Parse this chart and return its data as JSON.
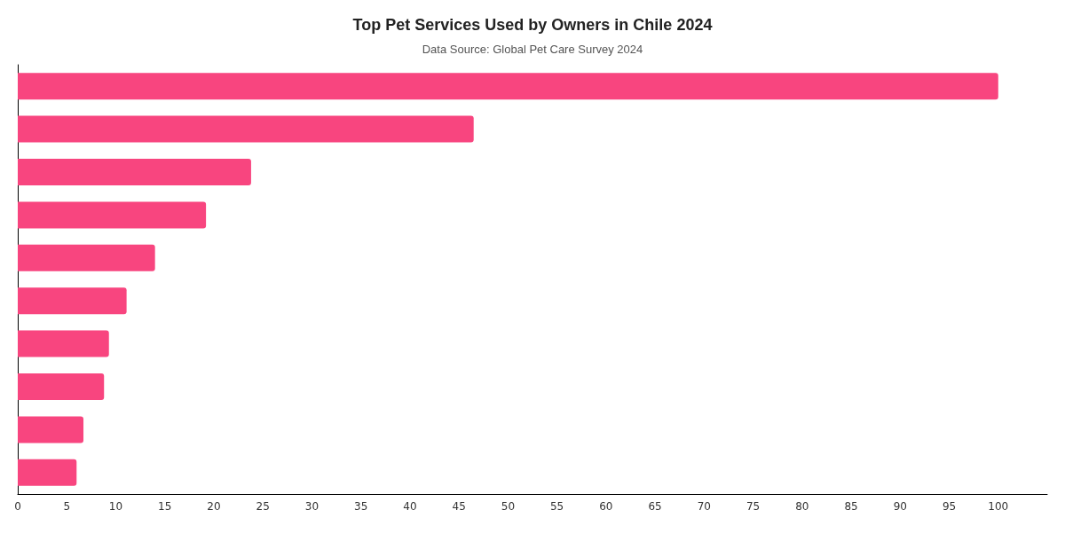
{
  "chart_data": {
    "type": "bar",
    "orientation": "horizontal",
    "title": "Top Pet Services Used by Owners in Chile 2024",
    "subtitle": "Data Source: Global Pet Care Survey 2024",
    "categories": [
      null,
      null,
      null,
      null,
      null,
      null,
      null,
      null,
      null,
      null
    ],
    "values": [
      100,
      46.5,
      23.8,
      19.2,
      14,
      11.1,
      9.3,
      8.8,
      6.7,
      6.0
    ],
    "color": "#f8457f",
    "xlim": [
      0,
      105
    ],
    "xticks": [
      0,
      5,
      10,
      15,
      20,
      25,
      30,
      35,
      40,
      45,
      50,
      55,
      60,
      65,
      70,
      75,
      80,
      85,
      90,
      95,
      100
    ],
    "grid": false
  }
}
